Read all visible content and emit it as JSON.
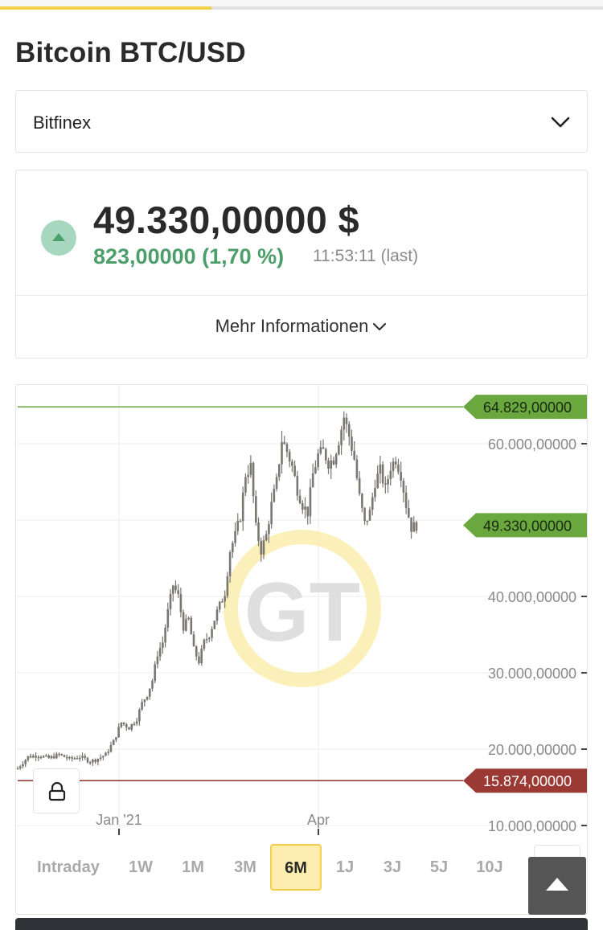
{
  "page": {
    "title": "Bitcoin BTC/USD"
  },
  "load_progress": 0.35,
  "exchange_select": {
    "value": "Bitfinex"
  },
  "quote": {
    "price": "49.330,00000 $",
    "change": "823,00000 (1,70 %)",
    "time": "11:53:11 (last)",
    "direction": "up",
    "more_info_label": "Mehr Informationen"
  },
  "colors": {
    "positive": "#4c9e6a",
    "negative": "#9b3a34",
    "accent": "#f2ce4a",
    "high_line": "#6aa83f",
    "candle": "#7a7670"
  },
  "chart_data": {
    "type": "candlestick",
    "x_tick_labels": [
      "Jan '21",
      "Apr"
    ],
    "y_tick_labels": [
      "60.000,00000",
      "40.000,00000",
      "30.000,00000",
      "20.000,00000",
      "10.000,00000"
    ],
    "ylim": [
      10000,
      70000
    ],
    "horizontal_markers": [
      {
        "label": "64.829,00000",
        "value": 64829,
        "kind": "high"
      },
      {
        "label": "49.330,00000",
        "value": 49330,
        "kind": "current"
      },
      {
        "label": "15.874,00000",
        "value": 15874,
        "kind": "low"
      }
    ],
    "close_path": [
      [
        0,
        17500
      ],
      [
        4,
        19000
      ],
      [
        8,
        19200
      ],
      [
        12,
        18800
      ],
      [
        16,
        19300
      ],
      [
        20,
        18700
      ],
      [
        24,
        19000
      ],
      [
        28,
        18400
      ],
      [
        30,
        18600
      ],
      [
        34,
        19300
      ],
      [
        37,
        21000
      ],
      [
        40,
        23500
      ],
      [
        43,
        22800
      ],
      [
        46,
        24000
      ],
      [
        48,
        26000
      ],
      [
        50,
        27200
      ],
      [
        52,
        29000
      ],
      [
        54,
        32500
      ],
      [
        56,
        34000
      ],
      [
        58,
        38000
      ],
      [
        60,
        41500
      ],
      [
        62,
        40000
      ],
      [
        64,
        36000
      ],
      [
        66,
        37000
      ],
      [
        68,
        33000
      ],
      [
        70,
        31500
      ],
      [
        72,
        34000
      ],
      [
        74,
        35000
      ],
      [
        77,
        38000
      ],
      [
        80,
        40500
      ],
      [
        82,
        46000
      ],
      [
        84,
        48000
      ],
      [
        86,
        50500
      ],
      [
        88,
        56000
      ],
      [
        90,
        57000
      ],
      [
        92,
        49000
      ],
      [
        94,
        46000
      ],
      [
        96,
        48000
      ],
      [
        98,
        52000
      ],
      [
        100,
        55000
      ],
      [
        102,
        60500
      ],
      [
        104,
        59000
      ],
      [
        106,
        57000
      ],
      [
        108,
        54000
      ],
      [
        110,
        52000
      ],
      [
        112,
        51000
      ],
      [
        114,
        56000
      ],
      [
        116,
        58500
      ],
      [
        118,
        59000
      ],
      [
        120,
        57500
      ],
      [
        122,
        58000
      ],
      [
        124,
        60500
      ],
      [
        126,
        63500
      ],
      [
        128,
        61000
      ],
      [
        130,
        58000
      ],
      [
        132,
        53000
      ],
      [
        134,
        49500
      ],
      [
        136,
        51000
      ],
      [
        138,
        55000
      ],
      [
        140,
        56500
      ],
      [
        142,
        54000
      ],
      [
        144,
        57000
      ],
      [
        146,
        58000
      ],
      [
        148,
        56000
      ],
      [
        150,
        52000
      ],
      [
        152,
        49000
      ],
      [
        154,
        49330
      ]
    ]
  },
  "watermark": {
    "text": "GT"
  },
  "range_buttons": [
    {
      "label": "Intraday",
      "active": false
    },
    {
      "label": "1W",
      "active": false
    },
    {
      "label": "1M",
      "active": false
    },
    {
      "label": "3M",
      "active": false
    },
    {
      "label": "6M",
      "active": true
    },
    {
      "label": "1J",
      "active": false
    },
    {
      "label": "3J",
      "active": false
    },
    {
      "label": "5J",
      "active": false
    },
    {
      "label": "10J",
      "active": false
    }
  ],
  "icons": {
    "chevron": "chevron-down-icon",
    "lock": "lock-icon",
    "candles": "candlestick-chart-icon",
    "scroll": "scroll-to-top-icon",
    "up": "arrow-up-icon"
  }
}
